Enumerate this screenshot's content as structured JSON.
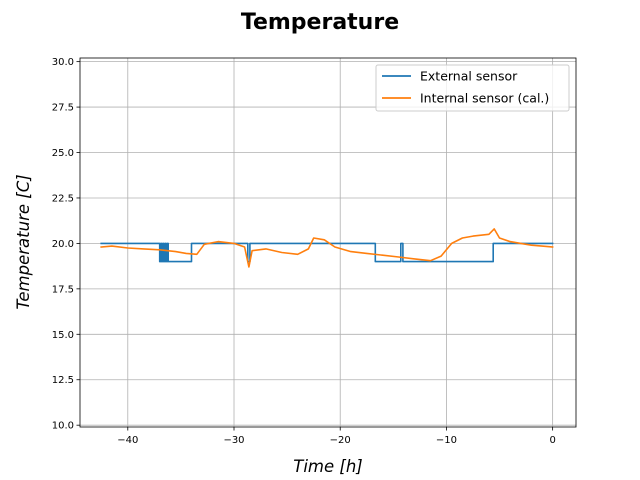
{
  "chart_data": {
    "type": "line",
    "title": "Temperature",
    "xlabel": "Time [h]",
    "ylabel": "Temperature [C]",
    "xlim": [
      -44.5,
      2.2
    ],
    "ylim": [
      9.9,
      30.2
    ],
    "xticks": [
      -40,
      -30,
      -20,
      -10,
      0
    ],
    "yticks": [
      10.0,
      12.5,
      15.0,
      17.5,
      20.0,
      22.5,
      25.0,
      27.5,
      30.0
    ],
    "xtick_labels": [
      "−40",
      "−30",
      "−20",
      "−10",
      "0"
    ],
    "ytick_labels": [
      "10.0",
      "12.5",
      "15.0",
      "17.5",
      "20.0",
      "22.5",
      "25.0",
      "27.5",
      "30.0"
    ],
    "grid": true,
    "legend_position": "top-right",
    "series": [
      {
        "name": "External sensor",
        "color": "#1f77b4",
        "step": true,
        "points": [
          [
            -42.5,
            20
          ],
          [
            -37.0,
            20
          ],
          [
            -37.0,
            19
          ],
          [
            -36.9,
            19
          ],
          [
            -36.9,
            20
          ],
          [
            -36.8,
            20
          ],
          [
            -36.8,
            19
          ],
          [
            -36.7,
            19
          ],
          [
            -36.7,
            20
          ],
          [
            -36.6,
            20
          ],
          [
            -36.6,
            19
          ],
          [
            -36.5,
            19
          ],
          [
            -36.5,
            20
          ],
          [
            -36.4,
            20
          ],
          [
            -36.4,
            19
          ],
          [
            -36.3,
            19
          ],
          [
            -36.3,
            20
          ],
          [
            -36.2,
            20
          ],
          [
            -36.2,
            19
          ],
          [
            -34.0,
            19
          ],
          [
            -34.0,
            20
          ],
          [
            -28.7,
            20
          ],
          [
            -28.7,
            19
          ],
          [
            -28.5,
            19
          ],
          [
            -28.5,
            20
          ],
          [
            -16.7,
            20
          ],
          [
            -16.7,
            19
          ],
          [
            -14.3,
            19
          ],
          [
            -14.3,
            20
          ],
          [
            -14.1,
            20
          ],
          [
            -14.1,
            19
          ],
          [
            -5.6,
            19
          ],
          [
            -5.6,
            20
          ],
          [
            0.0,
            20
          ]
        ]
      },
      {
        "name": "Internal sensor (cal.)",
        "color": "#ff7f0e",
        "step": false,
        "points": [
          [
            -42.5,
            19.8
          ],
          [
            -41.5,
            19.85
          ],
          [
            -40.0,
            19.75
          ],
          [
            -38.5,
            19.7
          ],
          [
            -37.0,
            19.65
          ],
          [
            -35.5,
            19.55
          ],
          [
            -34.5,
            19.45
          ],
          [
            -33.5,
            19.4
          ],
          [
            -32.8,
            19.95
          ],
          [
            -31.5,
            20.1
          ],
          [
            -30.0,
            20.0
          ],
          [
            -29.0,
            19.8
          ],
          [
            -28.6,
            18.7
          ],
          [
            -28.3,
            19.6
          ],
          [
            -27.0,
            19.7
          ],
          [
            -25.5,
            19.5
          ],
          [
            -24.0,
            19.4
          ],
          [
            -23.0,
            19.7
          ],
          [
            -22.5,
            20.3
          ],
          [
            -21.5,
            20.2
          ],
          [
            -20.5,
            19.8
          ],
          [
            -19.0,
            19.55
          ],
          [
            -17.5,
            19.45
          ],
          [
            -16.0,
            19.35
          ],
          [
            -14.5,
            19.25
          ],
          [
            -13.0,
            19.15
          ],
          [
            -11.5,
            19.05
          ],
          [
            -10.5,
            19.3
          ],
          [
            -9.5,
            20.0
          ],
          [
            -8.5,
            20.3
          ],
          [
            -7.5,
            20.4
          ],
          [
            -6.0,
            20.5
          ],
          [
            -5.5,
            20.8
          ],
          [
            -5.0,
            20.3
          ],
          [
            -4.0,
            20.1
          ],
          [
            -3.0,
            20.0
          ],
          [
            -2.0,
            19.9
          ],
          [
            -1.0,
            19.85
          ],
          [
            0.0,
            19.8
          ]
        ]
      }
    ]
  }
}
